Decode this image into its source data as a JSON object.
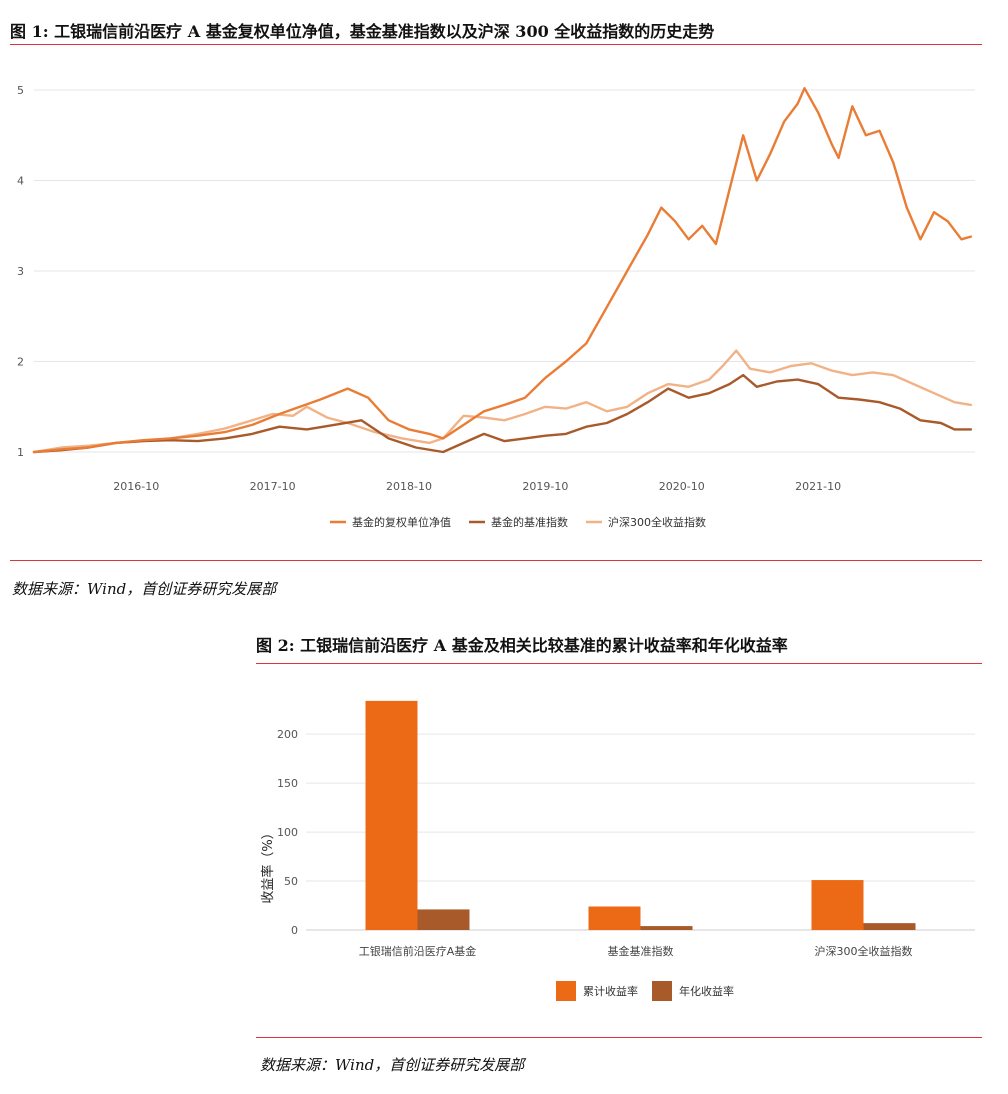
{
  "figure1": {
    "title": "图 1: 工银瑞信前沿医疗 A 基金复权单位净值，基金基准指数以及沪深 300 全收益指数的历史走势",
    "source": "数据来源：Wind，首创证券研究发展部",
    "chart_data": {
      "type": "line",
      "x_start": 2016.0,
      "x_end": 2022.9,
      "yticks": [
        1,
        2,
        3,
        4,
        5
      ],
      "ylim": [
        1,
        5
      ],
      "xticks": [
        {
          "x": 2016.75,
          "label": "2016-10"
        },
        {
          "x": 2017.75,
          "label": "2017-10"
        },
        {
          "x": 2018.75,
          "label": "2018-10"
        },
        {
          "x": 2019.75,
          "label": "2019-10"
        },
        {
          "x": 2020.75,
          "label": "2020-10"
        },
        {
          "x": 2021.75,
          "label": "2021-10"
        }
      ],
      "legend_position": "bottom-center",
      "grid": true,
      "series": [
        {
          "name": "基金的复权单位净值",
          "color": "#e97d36",
          "points": [
            [
              2016.0,
              1.0
            ],
            [
              2016.2,
              1.03
            ],
            [
              2016.4,
              1.05
            ],
            [
              2016.6,
              1.1
            ],
            [
              2016.8,
              1.13
            ],
            [
              2017.0,
              1.15
            ],
            [
              2017.2,
              1.18
            ],
            [
              2017.4,
              1.22
            ],
            [
              2017.6,
              1.3
            ],
            [
              2017.8,
              1.42
            ],
            [
              2017.95,
              1.5
            ],
            [
              2018.1,
              1.58
            ],
            [
              2018.3,
              1.7
            ],
            [
              2018.45,
              1.6
            ],
            [
              2018.6,
              1.35
            ],
            [
              2018.75,
              1.25
            ],
            [
              2018.9,
              1.2
            ],
            [
              2019.0,
              1.15
            ],
            [
              2019.15,
              1.3
            ],
            [
              2019.3,
              1.45
            ],
            [
              2019.45,
              1.52
            ],
            [
              2019.6,
              1.6
            ],
            [
              2019.75,
              1.82
            ],
            [
              2019.9,
              2.0
            ],
            [
              2020.05,
              2.2
            ],
            [
              2020.2,
              2.6
            ],
            [
              2020.35,
              3.0
            ],
            [
              2020.5,
              3.4
            ],
            [
              2020.6,
              3.7
            ],
            [
              2020.7,
              3.55
            ],
            [
              2020.8,
              3.35
            ],
            [
              2020.9,
              3.5
            ],
            [
              2021.0,
              3.3
            ],
            [
              2021.1,
              3.9
            ],
            [
              2021.2,
              4.5
            ],
            [
              2021.3,
              4.0
            ],
            [
              2021.4,
              4.3
            ],
            [
              2021.5,
              4.65
            ],
            [
              2021.6,
              4.85
            ],
            [
              2021.65,
              5.02
            ],
            [
              2021.75,
              4.75
            ],
            [
              2021.85,
              4.4
            ],
            [
              2021.9,
              4.25
            ],
            [
              2022.0,
              4.82
            ],
            [
              2022.1,
              4.5
            ],
            [
              2022.2,
              4.55
            ],
            [
              2022.3,
              4.2
            ],
            [
              2022.4,
              3.7
            ],
            [
              2022.5,
              3.35
            ],
            [
              2022.6,
              3.65
            ],
            [
              2022.7,
              3.55
            ],
            [
              2022.8,
              3.35
            ],
            [
              2022.87,
              3.38
            ]
          ]
        },
        {
          "name": "基金的基准指数",
          "color": "#a85a2b",
          "points": [
            [
              2016.0,
              1.0
            ],
            [
              2016.2,
              1.02
            ],
            [
              2016.4,
              1.05
            ],
            [
              2016.6,
              1.1
            ],
            [
              2016.8,
              1.12
            ],
            [
              2017.0,
              1.13
            ],
            [
              2017.2,
              1.12
            ],
            [
              2017.4,
              1.15
            ],
            [
              2017.6,
              1.2
            ],
            [
              2017.8,
              1.28
            ],
            [
              2018.0,
              1.25
            ],
            [
              2018.2,
              1.3
            ],
            [
              2018.4,
              1.35
            ],
            [
              2018.6,
              1.15
            ],
            [
              2018.8,
              1.05
            ],
            [
              2019.0,
              1.0
            ],
            [
              2019.15,
              1.1
            ],
            [
              2019.3,
              1.2
            ],
            [
              2019.45,
              1.12
            ],
            [
              2019.6,
              1.15
            ],
            [
              2019.75,
              1.18
            ],
            [
              2019.9,
              1.2
            ],
            [
              2020.05,
              1.28
            ],
            [
              2020.2,
              1.32
            ],
            [
              2020.35,
              1.42
            ],
            [
              2020.5,
              1.55
            ],
            [
              2020.65,
              1.7
            ],
            [
              2020.8,
              1.6
            ],
            [
              2020.95,
              1.65
            ],
            [
              2021.1,
              1.75
            ],
            [
              2021.2,
              1.85
            ],
            [
              2021.3,
              1.72
            ],
            [
              2021.45,
              1.78
            ],
            [
              2021.6,
              1.8
            ],
            [
              2021.75,
              1.75
            ],
            [
              2021.9,
              1.6
            ],
            [
              2022.05,
              1.58
            ],
            [
              2022.2,
              1.55
            ],
            [
              2022.35,
              1.48
            ],
            [
              2022.5,
              1.35
            ],
            [
              2022.65,
              1.32
            ],
            [
              2022.75,
              1.25
            ],
            [
              2022.87,
              1.25
            ]
          ]
        },
        {
          "name": "沪深300全收益指数",
          "color": "#f2b287",
          "points": [
            [
              2016.0,
              1.0
            ],
            [
              2016.2,
              1.05
            ],
            [
              2016.4,
              1.07
            ],
            [
              2016.6,
              1.1
            ],
            [
              2016.8,
              1.12
            ],
            [
              2017.0,
              1.15
            ],
            [
              2017.2,
              1.2
            ],
            [
              2017.4,
              1.26
            ],
            [
              2017.6,
              1.35
            ],
            [
              2017.75,
              1.42
            ],
            [
              2017.9,
              1.4
            ],
            [
              2018.0,
              1.5
            ],
            [
              2018.15,
              1.38
            ],
            [
              2018.3,
              1.32
            ],
            [
              2018.5,
              1.22
            ],
            [
              2018.7,
              1.15
            ],
            [
              2018.9,
              1.1
            ],
            [
              2019.0,
              1.15
            ],
            [
              2019.15,
              1.4
            ],
            [
              2019.3,
              1.38
            ],
            [
              2019.45,
              1.35
            ],
            [
              2019.6,
              1.42
            ],
            [
              2019.75,
              1.5
            ],
            [
              2019.9,
              1.48
            ],
            [
              2020.05,
              1.55
            ],
            [
              2020.2,
              1.45
            ],
            [
              2020.35,
              1.5
            ],
            [
              2020.5,
              1.65
            ],
            [
              2020.65,
              1.75
            ],
            [
              2020.8,
              1.72
            ],
            [
              2020.95,
              1.8
            ],
            [
              2021.05,
              1.95
            ],
            [
              2021.15,
              2.12
            ],
            [
              2021.25,
              1.92
            ],
            [
              2021.4,
              1.88
            ],
            [
              2021.55,
              1.95
            ],
            [
              2021.7,
              1.98
            ],
            [
              2021.85,
              1.9
            ],
            [
              2022.0,
              1.85
            ],
            [
              2022.15,
              1.88
            ],
            [
              2022.3,
              1.85
            ],
            [
              2022.45,
              1.75
            ],
            [
              2022.6,
              1.65
            ],
            [
              2022.75,
              1.55
            ],
            [
              2022.87,
              1.52
            ]
          ]
        }
      ]
    }
  },
  "figure2": {
    "title": "图 2: 工银瑞信前沿医疗 A 基金及相关比较基准的累计收益率和年化收益率",
    "source": "数据来源：Wind，首创证券研究发展部",
    "chart_data": {
      "type": "bar",
      "categories": [
        "工银瑞信前沿医疗A基金",
        "基金基准指数",
        "沪深300全收益指数"
      ],
      "series": [
        {
          "name": "累计收益率",
          "color": "#ec6a16",
          "values": [
            234,
            24,
            51
          ]
        },
        {
          "name": "年化收益率",
          "color": "#a85a2b",
          "values": [
            21,
            4,
            7
          ]
        }
      ],
      "ylabel": "收益率（%）",
      "yticks": [
        0,
        50,
        100,
        150,
        200
      ],
      "ylim": [
        0,
        240
      ],
      "grid": true,
      "legend_position": "bottom-center"
    }
  }
}
